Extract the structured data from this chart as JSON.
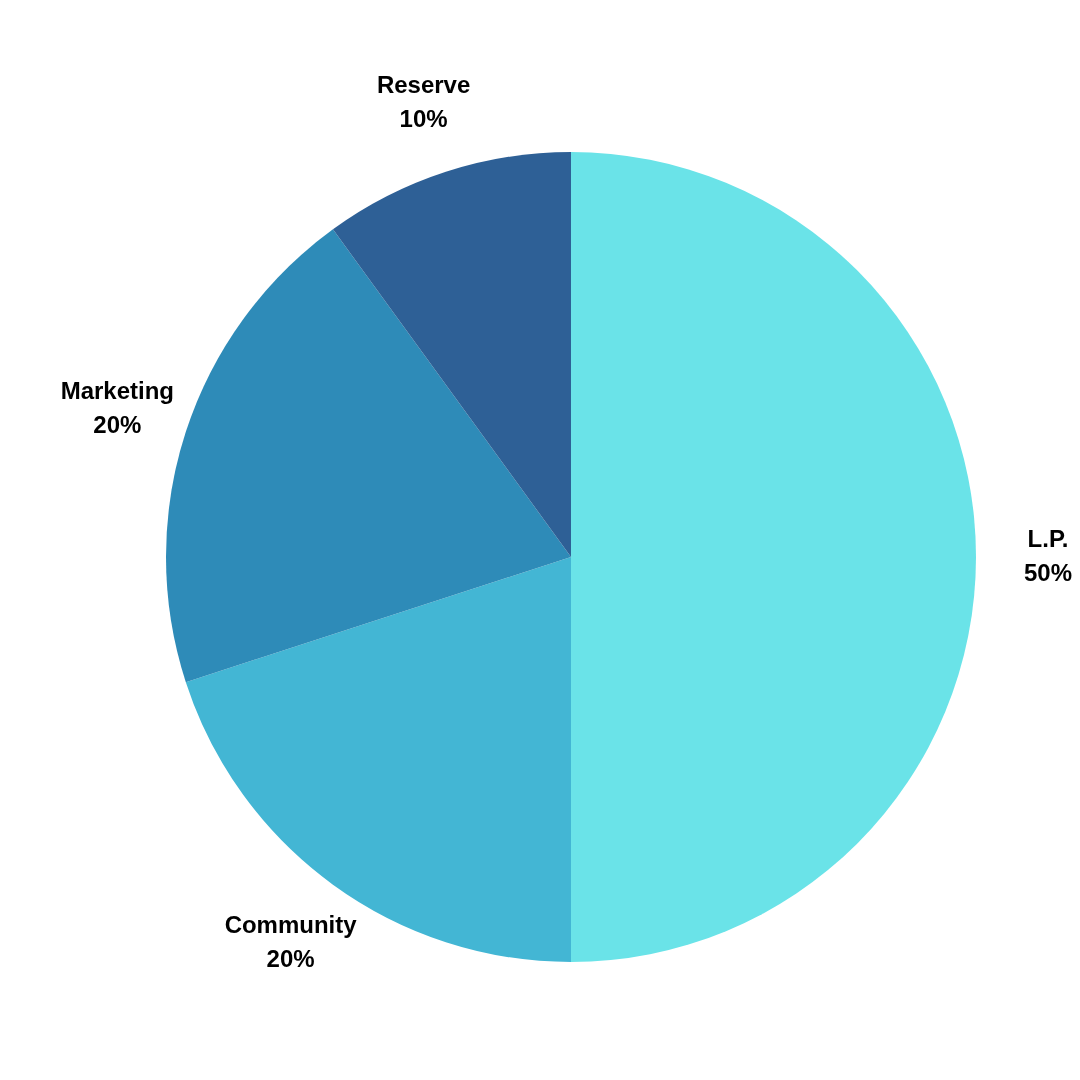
{
  "chart_data": {
    "type": "pie",
    "categories": [
      "L.P.",
      "Community",
      "Marketing",
      "Reserve"
    ],
    "values": [
      50,
      20,
      20,
      10
    ],
    "colors": [
      "#6ae3e8",
      "#43b6d4",
      "#2e8bb8",
      "#2e6096"
    ],
    "value_labels": [
      "50%",
      "20%",
      "20%",
      "10%"
    ]
  }
}
